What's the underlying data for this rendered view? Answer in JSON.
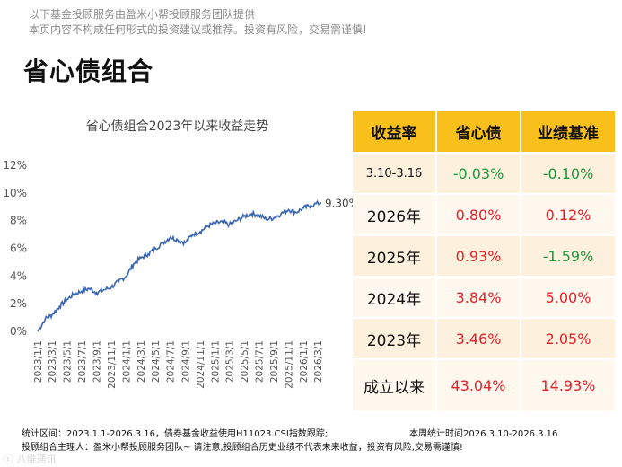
{
  "header": {
    "disclaimer_line1": "以下基金投顾服务由盈米小帮投顾服务团队提供",
    "disclaimer_line2": "本页内容不构成任何形式的投资建议或推荐。投资有风险，交易需谨慎!",
    "title": "省心债组合"
  },
  "chart_data": {
    "type": "line",
    "title": "省心债组合2023年以来收益走势",
    "xlabel": "",
    "ylabel": "",
    "ylim": [
      0,
      12
    ],
    "y_ticks": [
      "0%",
      "2%",
      "4%",
      "6%",
      "8%",
      "10%",
      "12%"
    ],
    "x_ticks": [
      "2023/1/1",
      "2023/3/1",
      "2023/5/1",
      "2023/7/1",
      "2023/9/1",
      "2023/11/1",
      "2024/1/1",
      "2024/3/1",
      "2024/5/1",
      "2024/7/1",
      "2024/9/1",
      "2024/11/1",
      "2025/1/1",
      "2025/3/1",
      "2025/5/1",
      "2025/7/1",
      "2025/9/1",
      "2025/11/1",
      "2026/1/1",
      "2026/3/1"
    ],
    "end_label": "9.30%",
    "color": "#3a66b0",
    "series": [
      {
        "x": [
          "2023/1/1",
          "2023/2/1",
          "2023/3/1",
          "2023/4/1",
          "2023/5/1",
          "2023/6/1",
          "2023/7/1",
          "2023/8/1",
          "2023/9/1",
          "2023/10/1",
          "2023/11/1",
          "2023/12/1",
          "2024/1/1",
          "2024/2/1",
          "2024/3/1",
          "2024/4/1",
          "2024/5/1",
          "2024/6/1",
          "2024/7/1",
          "2024/8/1",
          "2024/9/1",
          "2024/10/1",
          "2024/11/1",
          "2024/12/1",
          "2025/1/1",
          "2025/2/1",
          "2025/3/1",
          "2025/4/1",
          "2025/5/1",
          "2025/6/1",
          "2025/7/1",
          "2025/8/1",
          "2025/9/1",
          "2025/10/1",
          "2025/11/1",
          "2025/12/1",
          "2026/1/1",
          "2026/2/1",
          "2026/3/16"
        ],
        "values": [
          0.0,
          0.9,
          1.2,
          1.8,
          2.3,
          2.7,
          2.9,
          3.1,
          2.8,
          3.0,
          3.2,
          3.6,
          4.0,
          4.9,
          5.3,
          5.6,
          6.0,
          6.4,
          6.8,
          6.6,
          6.4,
          7.0,
          7.2,
          7.6,
          7.8,
          7.9,
          7.7,
          8.0,
          8.3,
          8.5,
          8.4,
          8.1,
          8.2,
          8.5,
          8.8,
          8.6,
          8.9,
          9.1,
          9.3
        ]
      }
    ]
  },
  "table": {
    "headers": [
      "收益率",
      "省心债",
      "业绩基准"
    ],
    "rows": [
      {
        "period": "3.10-3.16",
        "fund": "-0.03%",
        "bench": "-0.10%",
        "fund_sign": "neg",
        "bench_sign": "neg"
      },
      {
        "period": "2026年",
        "fund": "0.80%",
        "bench": "0.12%",
        "fund_sign": "pos",
        "bench_sign": "pos"
      },
      {
        "period": "2025年",
        "fund": "0.93%",
        "bench": "-1.59%",
        "fund_sign": "pos",
        "bench_sign": "neg"
      },
      {
        "period": "2024年",
        "fund": "3.84%",
        "bench": "5.00%",
        "fund_sign": "pos",
        "bench_sign": "pos"
      },
      {
        "period": "2023年",
        "fund": "3.46%",
        "bench": "2.05%",
        "fund_sign": "pos",
        "bench_sign": "pos"
      },
      {
        "period": "成立以来",
        "fund": "43.04%",
        "bench": "14.93%",
        "fund_sign": "pos",
        "bench_sign": "pos"
      }
    ]
  },
  "footer": {
    "stat_period": "统计区间：2023.1.1-2026.3.16，债券基金收益使用H11023.CSI指数跟踪;",
    "week_period": "本周统计时间2026.3.10-2026.3.16",
    "team": "投顾组合主理人：盈米小帮投顾服务团队~ 请注意,投顾组合历史业绩不代表未来收益，投资有风险,交易需谨慎!",
    "watermark": "ⓒ 八维通讯"
  }
}
